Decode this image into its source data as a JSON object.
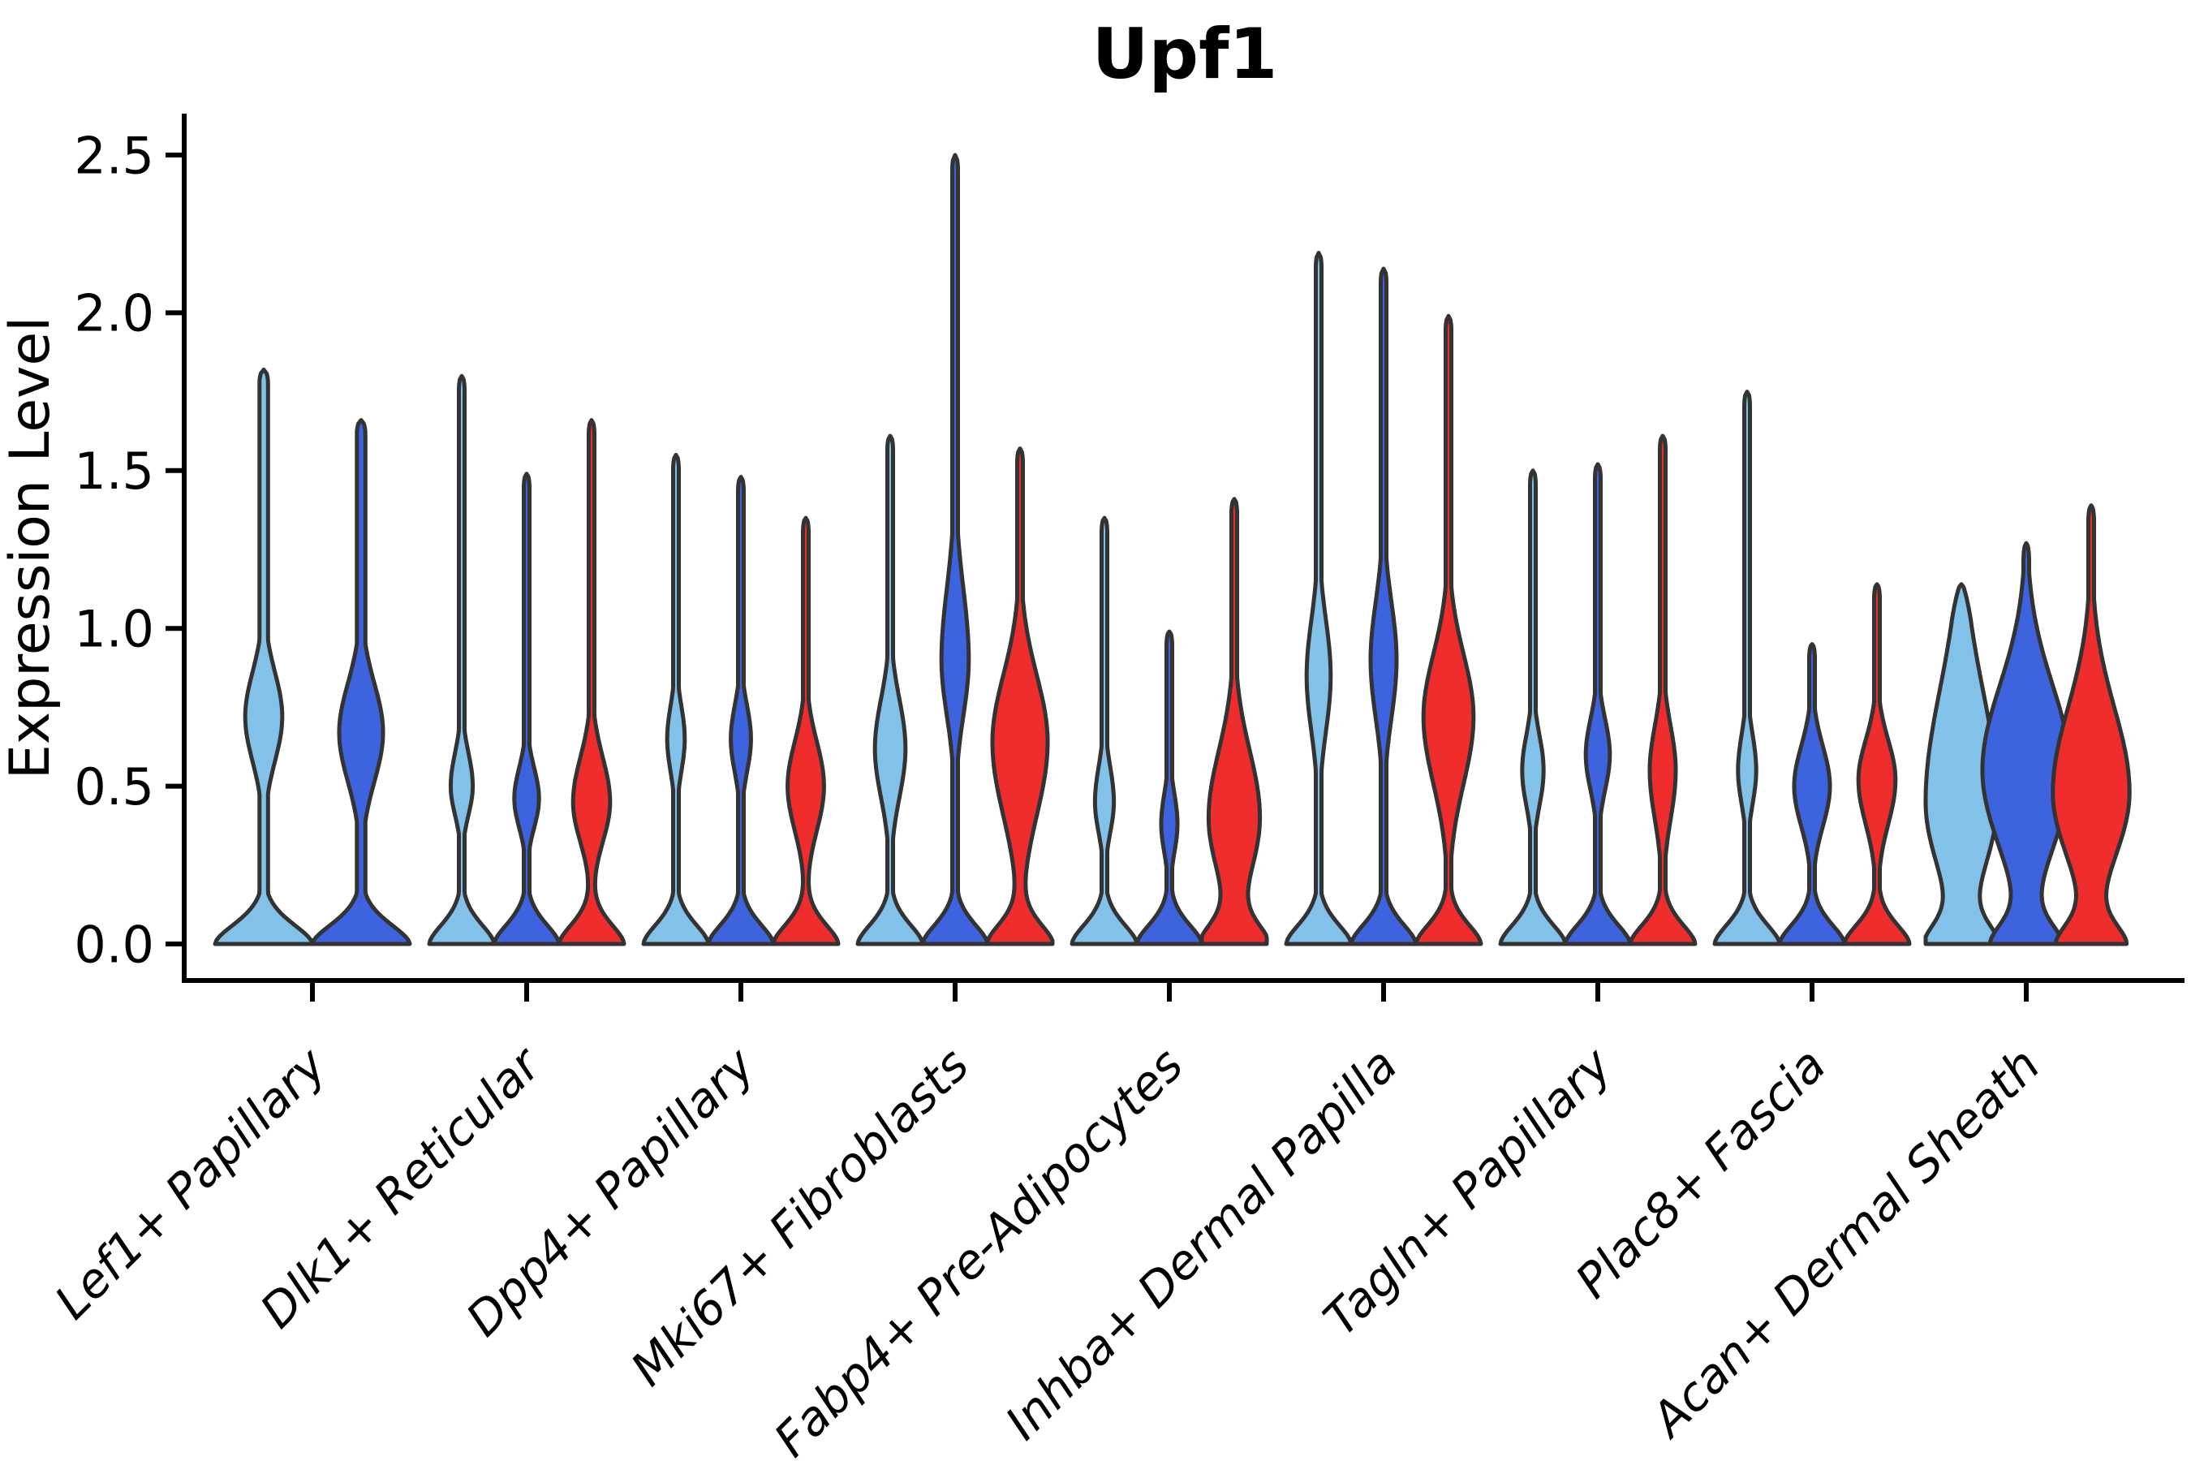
{
  "title": "Upf1",
  "ylabel": "Expression Level",
  "chart_data": {
    "type": "violin",
    "title": "Upf1",
    "xlabel": "",
    "ylabel": "Expression Level",
    "ylim": [
      0,
      2.5
    ],
    "yticks": [
      0.0,
      0.5,
      1.0,
      1.5,
      2.0,
      2.5
    ],
    "ytick_labels": [
      "0.0",
      "0.5",
      "1.0",
      "1.5",
      "2.0",
      "2.5"
    ],
    "grid": false,
    "legend": "none",
    "series_colors": {
      "light_blue": "#82C2E8",
      "dark_blue": "#3D63DE",
      "red": "#EF2D2D"
    },
    "outline_color": "#333333",
    "note": "Each violin: max = top of density spike (expression units); bulge_* describe the kernel-density bulge (center value, lower/upper spread, amplitude relative to violin half-width).",
    "categories": [
      {
        "label": "Lef1+ Papillary",
        "violins": [
          {
            "series": "light_blue",
            "max": 1.82,
            "bulge_center": 0.72,
            "bulge_sd_down": 0.2,
            "bulge_sd_up": 0.2,
            "bulge_amp": 0.38
          },
          {
            "series": "dark_blue",
            "max": 1.66,
            "bulge_center": 0.67,
            "bulge_sd_down": 0.22,
            "bulge_sd_up": 0.22,
            "bulge_amp": 0.45
          }
        ]
      },
      {
        "label": "Dlk1+ Reticular",
        "violins": [
          {
            "series": "light_blue",
            "max": 1.8,
            "bulge_center": 0.5,
            "bulge_sd_down": 0.13,
            "bulge_sd_up": 0.15,
            "bulge_amp": 0.34
          },
          {
            "series": "dark_blue",
            "max": 1.49,
            "bulge_center": 0.46,
            "bulge_sd_down": 0.13,
            "bulge_sd_up": 0.14,
            "bulge_amp": 0.38
          },
          {
            "series": "red",
            "max": 1.66,
            "bulge_center": 0.45,
            "bulge_sd_down": 0.18,
            "bulge_sd_up": 0.2,
            "bulge_amp": 0.57
          }
        ]
      },
      {
        "label": "Dpp4+ Papillary",
        "violins": [
          {
            "series": "light_blue",
            "max": 1.55,
            "bulge_center": 0.65,
            "bulge_sd_down": 0.15,
            "bulge_sd_up": 0.15,
            "bulge_amp": 0.27
          },
          {
            "series": "dark_blue",
            "max": 1.48,
            "bulge_center": 0.65,
            "bulge_sd_down": 0.15,
            "bulge_sd_up": 0.15,
            "bulge_amp": 0.31
          },
          {
            "series": "red",
            "max": 1.35,
            "bulge_center": 0.5,
            "bulge_sd_down": 0.2,
            "bulge_sd_up": 0.2,
            "bulge_amp": 0.56
          }
        ]
      },
      {
        "label": "Mki67+ Fibroblasts",
        "violins": [
          {
            "series": "light_blue",
            "max": 1.61,
            "bulge_center": 0.62,
            "bulge_sd_down": 0.22,
            "bulge_sd_up": 0.22,
            "bulge_amp": 0.47
          },
          {
            "series": "dark_blue",
            "max": 2.5,
            "bulge_center": 0.9,
            "bulge_sd_down": 0.25,
            "bulge_sd_up": 0.32,
            "bulge_amp": 0.42
          },
          {
            "series": "red",
            "max": 1.57,
            "bulge_center": 0.64,
            "bulge_sd_down": 0.33,
            "bulge_sd_up": 0.3,
            "bulge_amp": 0.85
          }
        ]
      },
      {
        "label": "Fabp4+ Pre-Adipocytes",
        "violins": [
          {
            "series": "light_blue",
            "max": 1.35,
            "bulge_center": 0.45,
            "bulge_sd_down": 0.14,
            "bulge_sd_up": 0.16,
            "bulge_amp": 0.29
          },
          {
            "series": "dark_blue",
            "max": 0.99,
            "bulge_center": 0.38,
            "bulge_sd_down": 0.13,
            "bulge_sd_up": 0.14,
            "bulge_amp": 0.25
          },
          {
            "series": "red",
            "max": 1.41,
            "bulge_center": 0.4,
            "bulge_sd_down": 0.26,
            "bulge_sd_up": 0.3,
            "bulge_amp": 0.79
          }
        ]
      },
      {
        "label": "Inhba+ Dermal Papilla",
        "violins": [
          {
            "series": "light_blue",
            "max": 2.19,
            "bulge_center": 0.85,
            "bulge_sd_down": 0.25,
            "bulge_sd_up": 0.25,
            "bulge_amp": 0.37
          },
          {
            "series": "dark_blue",
            "max": 2.14,
            "bulge_center": 0.9,
            "bulge_sd_down": 0.26,
            "bulge_sd_up": 0.26,
            "bulge_amp": 0.4
          },
          {
            "series": "red",
            "max": 1.99,
            "bulge_center": 0.72,
            "bulge_sd_down": 0.3,
            "bulge_sd_up": 0.28,
            "bulge_amp": 0.77
          }
        ]
      },
      {
        "label": "Tagln+ Papillary",
        "violins": [
          {
            "series": "light_blue",
            "max": 1.5,
            "bulge_center": 0.55,
            "bulge_sd_down": 0.16,
            "bulge_sd_up": 0.16,
            "bulge_amp": 0.33
          },
          {
            "series": "dark_blue",
            "max": 1.52,
            "bulge_center": 0.6,
            "bulge_sd_down": 0.16,
            "bulge_sd_up": 0.16,
            "bulge_amp": 0.37
          },
          {
            "series": "red",
            "max": 1.61,
            "bulge_center": 0.55,
            "bulge_sd_down": 0.22,
            "bulge_sd_up": 0.2,
            "bulge_amp": 0.4
          }
        ]
      },
      {
        "label": "Plac8+ Fascia",
        "violins": [
          {
            "series": "light_blue",
            "max": 1.75,
            "bulge_center": 0.55,
            "bulge_sd_down": 0.15,
            "bulge_sd_up": 0.16,
            "bulge_amp": 0.28
          },
          {
            "series": "dark_blue",
            "max": 0.95,
            "bulge_center": 0.5,
            "bulge_sd_down": 0.18,
            "bulge_sd_up": 0.18,
            "bulge_amp": 0.55
          },
          {
            "series": "red",
            "max": 1.14,
            "bulge_center": 0.52,
            "bulge_sd_down": 0.2,
            "bulge_sd_up": 0.18,
            "bulge_amp": 0.57
          }
        ]
      },
      {
        "label": "Acan+ Dermal Sheath",
        "violins": [
          {
            "series": "light_blue",
            "max": 1.14,
            "bulge_center": 0.45,
            "bulge_sd_down": 0.32,
            "bulge_sd_up": 0.5,
            "bulge_amp": 1.1,
            "tip": 0.12
          },
          {
            "series": "dark_blue",
            "max": 1.27,
            "bulge_center": 0.55,
            "bulge_sd_down": 0.35,
            "bulge_sd_up": 0.38,
            "bulge_amp": 1.35,
            "tip": 0.06
          },
          {
            "series": "red",
            "max": 1.39,
            "bulge_center": 0.48,
            "bulge_sd_down": 0.3,
            "bulge_sd_up": 0.38,
            "bulge_amp": 1.18,
            "tip": 0.05
          }
        ]
      }
    ]
  }
}
